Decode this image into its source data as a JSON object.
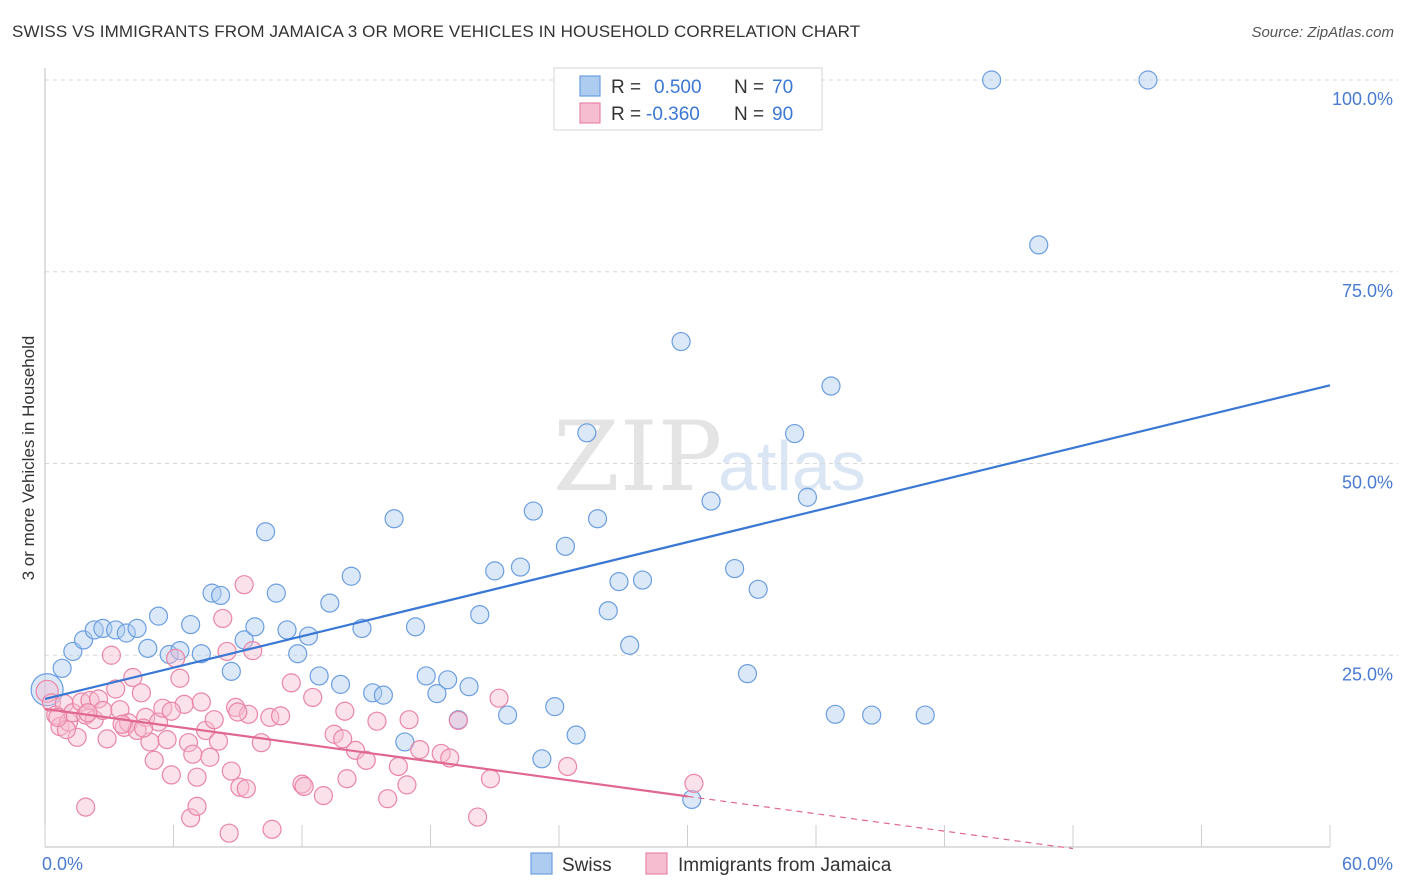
{
  "title": "SWISS VS IMMIGRANTS FROM JAMAICA 3 OR MORE VEHICLES IN HOUSEHOLD CORRELATION CHART",
  "source": "Source: ZipAtlas.com",
  "watermark": {
    "zip": "ZIP",
    "atlas": "atlas"
  },
  "colors": {
    "swiss_fill": "#aecbf0",
    "swiss_stroke": "#6c9ee0",
    "swiss_line": "#3a78d4",
    "jam_fill": "#f6bcd0",
    "jam_stroke": "#ea85a8",
    "jam_line": "#e0688f",
    "grid": "#d8d8d8",
    "tick_text": "#4a7bd1"
  },
  "chart_data": {
    "type": "scatter",
    "title": "SWISS VS IMMIGRANTS FROM JAMAICA 3 OR MORE VEHICLES IN HOUSEHOLD CORRELATION CHART",
    "xlabel": "",
    "ylabel": "3 or more Vehicles in Household",
    "xlim": [
      0,
      60
    ],
    "ylim": [
      0,
      100
    ],
    "x_tick_labels": [
      "0.0%",
      "60.0%"
    ],
    "y_ticks": [
      25,
      50,
      75,
      100
    ],
    "y_tick_labels": [
      "25.0%",
      "50.0%",
      "75.0%",
      "100.0%"
    ],
    "grid": true,
    "legend_top": [
      {
        "r_label": "R =",
        "r_value": "0.500",
        "n_label": "N =",
        "n_value": "70",
        "series": "Swiss"
      },
      {
        "r_label": "R =",
        "r_value": "-0.360",
        "n_label": "N =",
        "n_value": "90",
        "series": "Immigrants from Jamaica"
      }
    ],
    "legend_bottom": [
      "Swiss",
      "Immigrants from Jamaica"
    ],
    "series": [
      {
        "name": "Swiss",
        "trend": {
          "x": [
            0,
            60
          ],
          "y": [
            19.3,
            60.2
          ]
        },
        "points": [
          [
            0.1,
            20.5
          ],
          [
            0.8,
            23.3
          ],
          [
            1.3,
            25.5
          ],
          [
            1.8,
            27.0
          ],
          [
            2.3,
            28.3
          ],
          [
            2.7,
            28.5
          ],
          [
            3.3,
            28.3
          ],
          [
            3.8,
            27.9
          ],
          [
            4.3,
            28.5
          ],
          [
            4.8,
            25.9
          ],
          [
            5.3,
            30.1
          ],
          [
            5.8,
            25.1
          ],
          [
            6.3,
            25.6
          ],
          [
            6.8,
            29.0
          ],
          [
            7.3,
            25.2
          ],
          [
            7.8,
            33.1
          ],
          [
            8.2,
            32.8
          ],
          [
            8.7,
            22.9
          ],
          [
            9.3,
            27.0
          ],
          [
            9.8,
            28.7
          ],
          [
            10.3,
            41.1
          ],
          [
            10.8,
            33.1
          ],
          [
            11.3,
            28.3
          ],
          [
            11.8,
            25.2
          ],
          [
            12.3,
            27.5
          ],
          [
            12.8,
            22.3
          ],
          [
            13.3,
            31.8
          ],
          [
            13.8,
            21.2
          ],
          [
            14.3,
            35.3
          ],
          [
            14.8,
            28.5
          ],
          [
            15.3,
            20.1
          ],
          [
            15.8,
            19.8
          ],
          [
            16.3,
            42.8
          ],
          [
            16.8,
            13.7
          ],
          [
            17.3,
            28.7
          ],
          [
            17.8,
            22.3
          ],
          [
            18.3,
            20.0
          ],
          [
            18.8,
            21.8
          ],
          [
            19.3,
            16.6
          ],
          [
            19.8,
            20.9
          ],
          [
            20.3,
            30.3
          ],
          [
            21.0,
            36.0
          ],
          [
            21.6,
            17.2
          ],
          [
            22.2,
            36.5
          ],
          [
            22.8,
            43.8
          ],
          [
            23.2,
            11.5
          ],
          [
            23.8,
            18.3
          ],
          [
            24.3,
            39.2
          ],
          [
            24.8,
            14.6
          ],
          [
            25.3,
            54.0
          ],
          [
            25.8,
            42.8
          ],
          [
            26.3,
            30.8
          ],
          [
            26.8,
            34.6
          ],
          [
            27.3,
            26.3
          ],
          [
            27.9,
            34.8
          ],
          [
            29.7,
            65.9
          ],
          [
            31.1,
            45.1
          ],
          [
            32.2,
            36.3
          ],
          [
            32.8,
            22.6
          ],
          [
            33.3,
            33.6
          ],
          [
            35.0,
            53.9
          ],
          [
            35.6,
            45.6
          ],
          [
            36.7,
            60.1
          ],
          [
            36.9,
            17.3
          ],
          [
            38.6,
            17.2
          ],
          [
            41.1,
            17.2
          ],
          [
            44.2,
            100.0
          ],
          [
            46.4,
            78.5
          ],
          [
            51.5,
            100.0
          ],
          [
            30.2,
            6.2
          ]
        ]
      },
      {
        "name": "Immigrants from Jamaica",
        "trend": {
          "x": [
            0,
            30
          ],
          "y": [
            18.0,
            6.6
          ]
        },
        "trend_dashed": {
          "x": [
            30,
            48
          ],
          "y": [
            6.6,
            -0.2
          ]
        },
        "points": [
          [
            0.1,
            20.3
          ],
          [
            0.3,
            18.8
          ],
          [
            0.5,
            17.2
          ],
          [
            0.7,
            15.7
          ],
          [
            0.9,
            18.7
          ],
          [
            1.1,
            16.3
          ],
          [
            1.3,
            17.5
          ],
          [
            1.5,
            14.3
          ],
          [
            1.7,
            18.9
          ],
          [
            1.9,
            17.2
          ],
          [
            2.1,
            19.1
          ],
          [
            2.3,
            16.6
          ],
          [
            2.5,
            19.3
          ],
          [
            2.7,
            17.8
          ],
          [
            2.9,
            14.1
          ],
          [
            3.1,
            25.0
          ],
          [
            3.3,
            20.6
          ],
          [
            3.5,
            17.9
          ],
          [
            3.7,
            15.6
          ],
          [
            3.9,
            16.2
          ],
          [
            4.1,
            22.1
          ],
          [
            4.3,
            15.2
          ],
          [
            4.5,
            20.1
          ],
          [
            4.7,
            16.9
          ],
          [
            4.9,
            13.7
          ],
          [
            5.1,
            11.3
          ],
          [
            5.3,
            16.3
          ],
          [
            5.5,
            18.1
          ],
          [
            5.7,
            14.0
          ],
          [
            5.9,
            9.4
          ],
          [
            6.1,
            24.6
          ],
          [
            6.3,
            22.0
          ],
          [
            6.5,
            18.6
          ],
          [
            6.7,
            13.6
          ],
          [
            6.9,
            12.1
          ],
          [
            7.1,
            9.1
          ],
          [
            7.3,
            18.9
          ],
          [
            7.5,
            15.2
          ],
          [
            7.7,
            11.7
          ],
          [
            7.9,
            16.6
          ],
          [
            8.1,
            13.8
          ],
          [
            8.3,
            29.8
          ],
          [
            8.5,
            25.5
          ],
          [
            8.7,
            9.9
          ],
          [
            8.9,
            18.2
          ],
          [
            9.1,
            7.8
          ],
          [
            9.3,
            34.2
          ],
          [
            9.5,
            17.3
          ],
          [
            9.7,
            25.6
          ],
          [
            10.1,
            13.6
          ],
          [
            10.5,
            16.9
          ],
          [
            11.0,
            17.1
          ],
          [
            11.5,
            21.4
          ],
          [
            12.0,
            8.2
          ],
          [
            12.5,
            19.5
          ],
          [
            13.0,
            6.7
          ],
          [
            13.5,
            14.7
          ],
          [
            14.0,
            17.7
          ],
          [
            14.5,
            12.6
          ],
          [
            15.0,
            11.3
          ],
          [
            15.5,
            16.4
          ],
          [
            16.0,
            6.3
          ],
          [
            16.5,
            10.5
          ],
          [
            17.0,
            16.6
          ],
          [
            17.5,
            12.7
          ],
          [
            18.5,
            12.2
          ],
          [
            19.3,
            16.5
          ],
          [
            20.2,
            3.9
          ],
          [
            20.8,
            8.9
          ],
          [
            1.9,
            5.2
          ],
          [
            6.8,
            3.8
          ],
          [
            7.1,
            5.3
          ],
          [
            8.6,
            1.8
          ],
          [
            9.4,
            7.6
          ],
          [
            10.6,
            2.3
          ],
          [
            5.9,
            17.7
          ],
          [
            4.6,
            15.5
          ],
          [
            3.6,
            16.0
          ],
          [
            2.0,
            17.5
          ],
          [
            1.0,
            15.3
          ],
          [
            0.6,
            16.9
          ],
          [
            9.0,
            17.6
          ],
          [
            12.1,
            7.9
          ],
          [
            14.1,
            8.9
          ],
          [
            16.9,
            8.1
          ],
          [
            18.9,
            11.6
          ],
          [
            21.2,
            19.4
          ],
          [
            24.4,
            10.5
          ],
          [
            30.3,
            8.3
          ],
          [
            13.9,
            14.1
          ]
        ]
      }
    ]
  }
}
